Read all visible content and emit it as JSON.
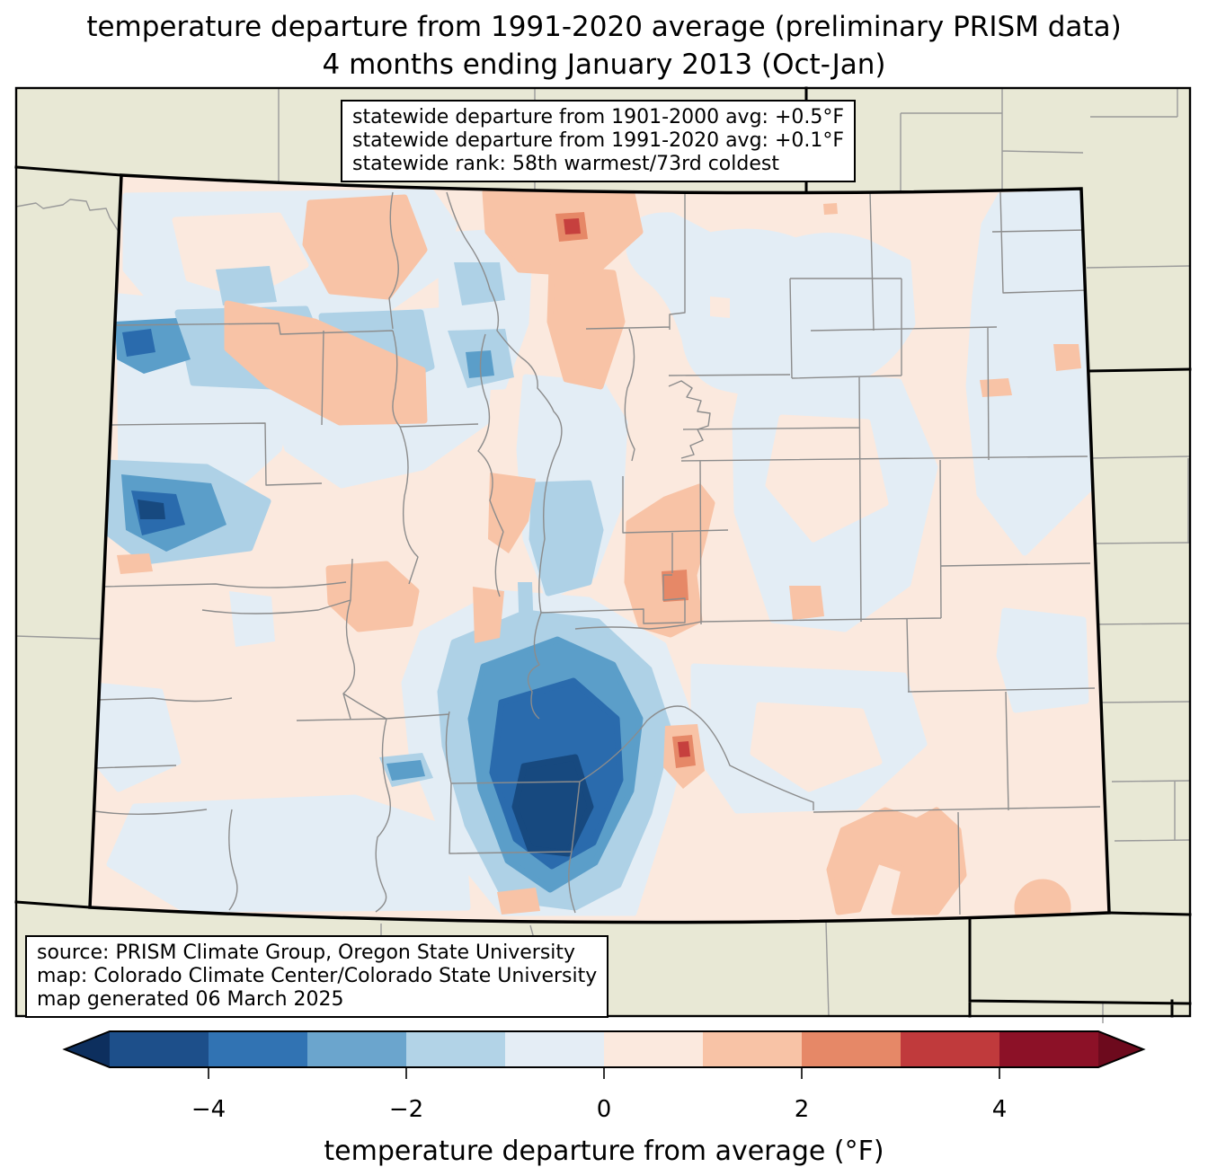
{
  "title": {
    "line1": "temperature departure from 1991-2020 average (preliminary PRISM data)",
    "line2": "4 months ending January 2013 (Oct-Jan)"
  },
  "stats_box": {
    "line1": "statewide departure from 1901-2000 avg: +0.5°F",
    "line2": "statewide departure from 1991-2020 avg: +0.1°F",
    "line3": "statewide rank: 58th warmest/73rd coldest"
  },
  "source_box": {
    "line1": "source: PRISM Climate Group, Oregon State University",
    "line2": "map: Colorado Climate Center/Colorado State University",
    "line3": "map generated 06 March 2025"
  },
  "colorbar": {
    "label": "temperature departure from average (°F)",
    "tick_labels": [
      "−4",
      "−2",
      "0",
      "2",
      "4"
    ],
    "tick_values": [
      -4,
      -2,
      0,
      2,
      4
    ],
    "range": [
      -5,
      5
    ],
    "segment_colors": [
      "#1d4f8a",
      "#3173b3",
      "#6ba5cd",
      "#b2d3e7",
      "#e4edf5",
      "#fbe9de",
      "#f8c3a6",
      "#e68867",
      "#c03a3c",
      "#8c1127"
    ],
    "arrow_left_color": "#0d2f5e",
    "arrow_right_color": "#6d0a1d"
  },
  "map": {
    "region": "Colorado with county boundaries and surrounding states",
    "background_color": "#e8e8d5",
    "base_anomaly_color": "#fbe9de",
    "state_border_color": "#000000",
    "county_line_color": "#8c8c8c"
  }
}
